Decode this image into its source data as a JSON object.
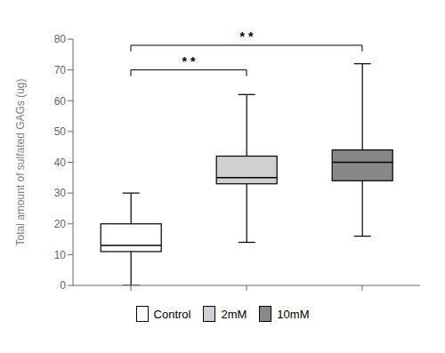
{
  "chart_data": {
    "type": "box",
    "ylabel": "Total amount of sulfated GAGs (ug)",
    "categories": [
      null,
      null,
      null
    ],
    "series": [
      {
        "name": "Control",
        "color": "#ffffff",
        "whisker_low": 0,
        "q1": 11,
        "median": 13,
        "q3": 20,
        "whisker_high": 30
      },
      {
        "name": "2mM",
        "color": "#d0d0d0",
        "whisker_low": 14,
        "q1": 33,
        "median": 35,
        "q3": 42,
        "whisker_high": 62
      },
      {
        "name": "10mM",
        "color": "#888888",
        "whisker_low": 16,
        "q1": 34,
        "median": 40,
        "q3": 44,
        "whisker_high": 72
      }
    ],
    "ylim": [
      0,
      80
    ],
    "yticks": [
      0,
      10,
      20,
      30,
      40,
      50,
      60,
      70,
      80
    ],
    "annotations": [
      {
        "text": "* *",
        "from": "Control",
        "to": "2mM",
        "y": 70,
        "drop": 2.0
      },
      {
        "text": "* *",
        "from": "Control",
        "to": "10mM",
        "y": 78,
        "drop": 2.0
      }
    ],
    "legend": "bottom",
    "grid": false
  }
}
